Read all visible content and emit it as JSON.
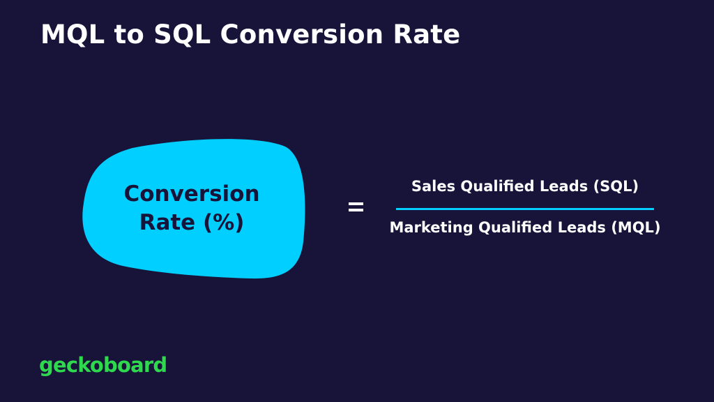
{
  "title": "MQL to SQL Conversion Rate",
  "formula": {
    "lhs_line1": "Conversion",
    "lhs_line2": "Rate (%)",
    "operator": "=",
    "numerator": "Sales Qualified Leads (SQL)",
    "denominator": "Marketing Qualified Leads (MQL)"
  },
  "brand": {
    "logo_text": "geckoboard"
  },
  "colors": {
    "background": "#171339",
    "text": "#ffffff",
    "blob": "#00cfff",
    "blob_text": "#171339",
    "fraction_line": "#00cfff",
    "logo": "#2ed94e"
  }
}
